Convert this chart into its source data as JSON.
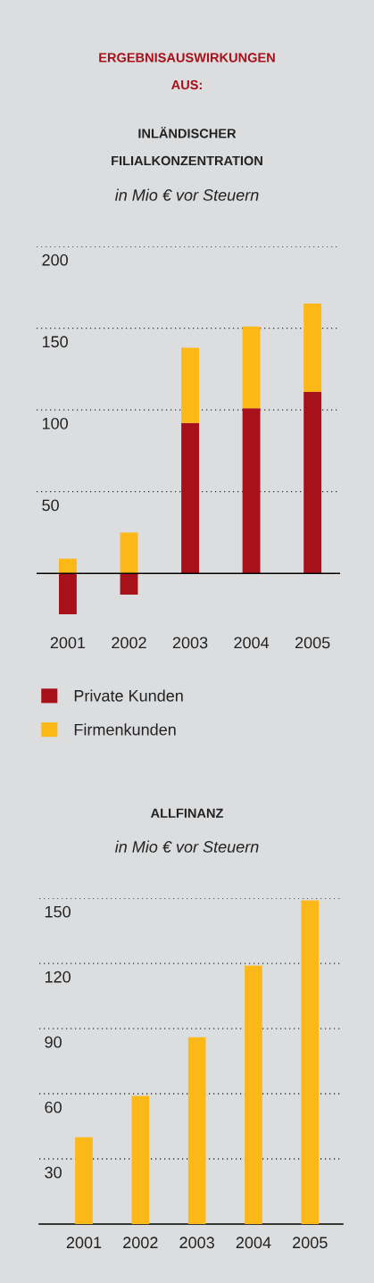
{
  "chart_data": [
    {
      "type": "bar",
      "title": "ERGEBNISAUSWIRKUNGEN\nAUS:",
      "subtitle": "INLÄNDISCHER\nFILIALKONZENTRATION",
      "ylabel": "in Mio € vor Steuern",
      "categories": [
        "2001",
        "2002",
        "2003",
        "2004",
        "2005"
      ],
      "stacked": true,
      "series": [
        {
          "name": "Private Kunden",
          "color": "#a8101a",
          "values": [
            -25,
            -13,
            92,
            101,
            111
          ]
        },
        {
          "name": "Firmenkunden",
          "color": "#fbb817",
          "values": [
            9,
            25,
            46,
            50,
            54
          ]
        }
      ],
      "ylim": [
        -25,
        200
      ],
      "yticks": [
        50,
        100,
        150,
        200
      ],
      "grid": "y",
      "legend": "bottom"
    },
    {
      "type": "bar",
      "title": "ALLFINANZ",
      "ylabel": "in Mio € vor Steuern",
      "categories": [
        "2001",
        "2002",
        "2003",
        "2004",
        "2005"
      ],
      "series": [
        {
          "color": "#fbb817",
          "values": [
            40,
            59,
            86,
            119,
            149
          ]
        }
      ],
      "ylim": [
        0,
        150
      ],
      "yticks": [
        30,
        60,
        90,
        120,
        150
      ],
      "grid": "y"
    }
  ]
}
